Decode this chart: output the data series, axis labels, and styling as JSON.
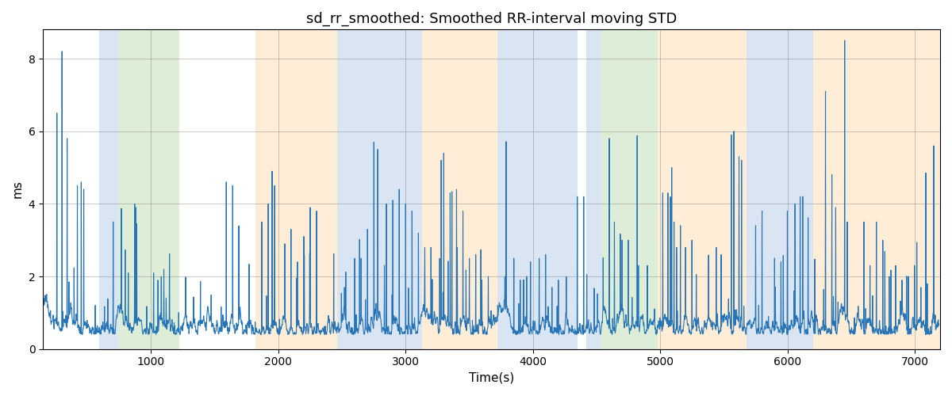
{
  "title": "sd_rr_smoothed: Smoothed RR-interval moving STD",
  "xlabel": "Time(s)",
  "ylabel": "ms",
  "xlim": [
    150,
    7200
  ],
  "ylim": [
    0,
    8.8
  ],
  "yticks": [
    0,
    2,
    4,
    6,
    8
  ],
  "line_color": "#2775b6",
  "line_width": 0.8,
  "bg_color": "#ffffff",
  "bands": [
    {
      "xmin": 590,
      "xmax": 740,
      "color": "#aec6e8",
      "alpha": 0.45
    },
    {
      "xmin": 740,
      "xmax": 1220,
      "color": "#b5d9a8",
      "alpha": 0.45
    },
    {
      "xmin": 1820,
      "xmax": 2460,
      "color": "#ffd9a8",
      "alpha": 0.45
    },
    {
      "xmin": 2460,
      "xmax": 3130,
      "color": "#aec6e8",
      "alpha": 0.45
    },
    {
      "xmin": 3130,
      "xmax": 3720,
      "color": "#ffd9a8",
      "alpha": 0.45
    },
    {
      "xmin": 3720,
      "xmax": 4350,
      "color": "#aec6e8",
      "alpha": 0.45
    },
    {
      "xmin": 4420,
      "xmax": 4540,
      "color": "#aec6e8",
      "alpha": 0.45
    },
    {
      "xmin": 4540,
      "xmax": 4980,
      "color": "#b5d9a8",
      "alpha": 0.45
    },
    {
      "xmin": 4980,
      "xmax": 5680,
      "color": "#ffd9a8",
      "alpha": 0.45
    },
    {
      "xmin": 5680,
      "xmax": 6200,
      "color": "#aec6e8",
      "alpha": 0.45
    },
    {
      "xmin": 6200,
      "xmax": 7250,
      "color": "#ffd9a8",
      "alpha": 0.45
    }
  ],
  "seed": 17,
  "n_points": 3500,
  "t_start": 155,
  "t_end": 7190
}
